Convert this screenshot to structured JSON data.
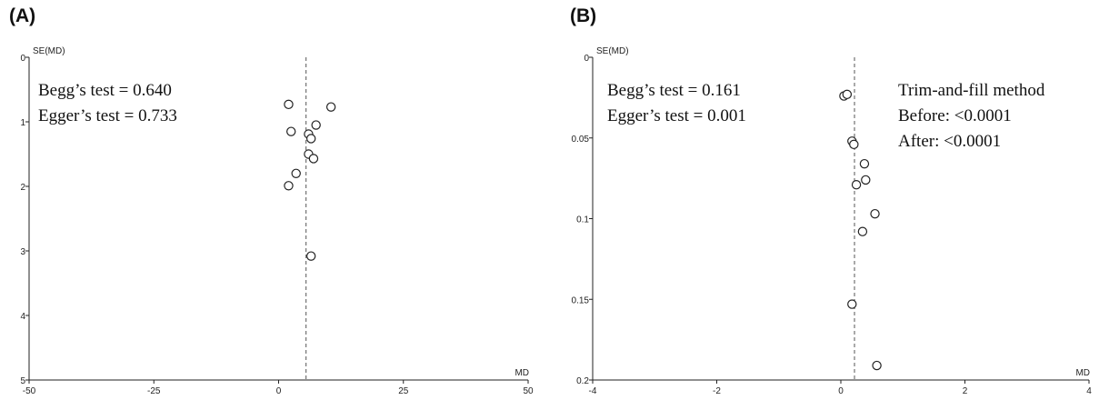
{
  "panels": {
    "a_label": "(A)",
    "b_label": "(B)"
  },
  "chart_data": [
    {
      "type": "scatter",
      "title": "",
      "xlabel": "MD",
      "ylabel": "SE(MD)",
      "xlim": [
        -50,
        50
      ],
      "ylim": [
        0,
        5
      ],
      "y_inverted": true,
      "grid": false,
      "xticks": [
        -50,
        -25,
        0,
        25,
        50
      ],
      "xtick_labels": [
        "-50",
        "-25",
        "0",
        "25",
        "50"
      ],
      "yticks": [
        0,
        1,
        2,
        3,
        4,
        5
      ],
      "ytick_labels": [
        "0",
        "1",
        "2",
        "3",
        "4",
        "5"
      ],
      "reference_line_x": 5.5,
      "points": [
        {
          "x": 2.0,
          "y": 0.73
        },
        {
          "x": 10.5,
          "y": 0.77
        },
        {
          "x": 7.5,
          "y": 1.05
        },
        {
          "x": 2.5,
          "y": 1.15
        },
        {
          "x": 6.0,
          "y": 1.19
        },
        {
          "x": 6.5,
          "y": 1.26
        },
        {
          "x": 6.0,
          "y": 1.5
        },
        {
          "x": 7.0,
          "y": 1.57
        },
        {
          "x": 3.5,
          "y": 1.8
        },
        {
          "x": 2.0,
          "y": 1.99
        },
        {
          "x": 6.5,
          "y": 3.08
        }
      ],
      "annotations": [
        "Begg’s test = 0.640",
        "Egger’s test = 0.733"
      ]
    },
    {
      "type": "scatter",
      "title": "",
      "xlabel": "MD",
      "ylabel": "SE(MD)",
      "xlim": [
        -4,
        4
      ],
      "ylim": [
        0,
        0.2
      ],
      "y_inverted": true,
      "grid": false,
      "xticks": [
        -4,
        -2,
        0,
        2,
        4
      ],
      "xtick_labels": [
        "-4",
        "-2",
        "0",
        "2",
        "4"
      ],
      "yticks": [
        0,
        0.05,
        0.1,
        0.15,
        0.2
      ],
      "ytick_labels": [
        "0",
        "0.05",
        "0.1",
        "0.15",
        "0.2"
      ],
      "reference_line_x": 0.22,
      "points": [
        {
          "x": 0.05,
          "y": 0.024
        },
        {
          "x": 0.1,
          "y": 0.023
        },
        {
          "x": 0.18,
          "y": 0.052
        },
        {
          "x": 0.21,
          "y": 0.054
        },
        {
          "x": 0.38,
          "y": 0.066
        },
        {
          "x": 0.4,
          "y": 0.076
        },
        {
          "x": 0.25,
          "y": 0.079
        },
        {
          "x": 0.55,
          "y": 0.097
        },
        {
          "x": 0.35,
          "y": 0.108
        },
        {
          "x": 0.18,
          "y": 0.153
        },
        {
          "x": 0.58,
          "y": 0.191
        }
      ],
      "annotations": [
        "Begg’s test = 0.161",
        "Egger’s test = 0.001"
      ],
      "annotations_right": [
        "Trim-and-fill method",
        "Before: <0.0001",
        "After: <0.0001"
      ]
    }
  ]
}
